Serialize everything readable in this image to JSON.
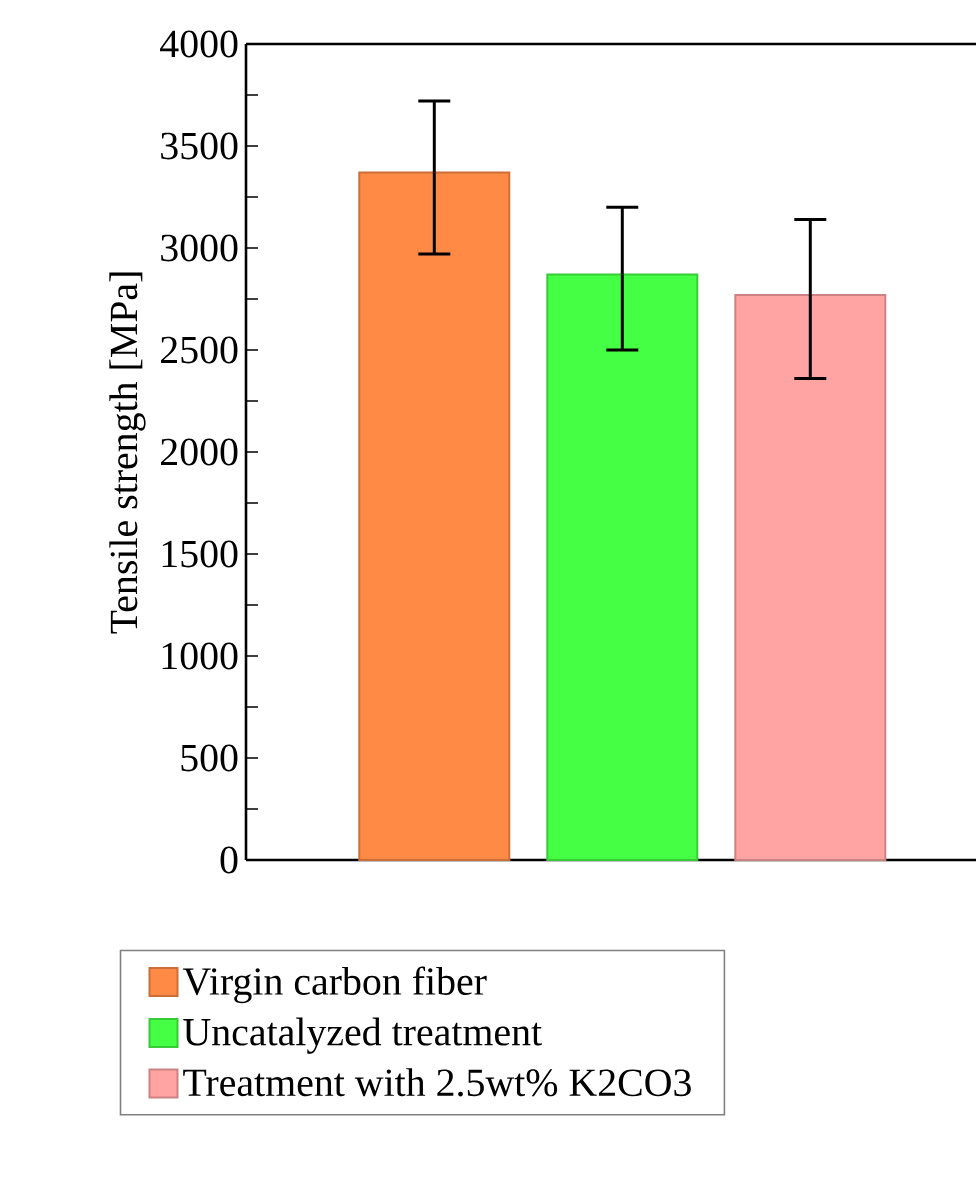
{
  "chart_data": {
    "type": "bar",
    "ylabel": "Tensile strength [MPa]",
    "categories": [
      null
    ],
    "series": [
      {
        "name": "Virgin carbon fiber",
        "color": "#ff8a45",
        "values": [
          3370
        ],
        "errors": [
          [
            2970,
            3720
          ]
        ]
      },
      {
        "name": "Uncatalyzed treatment",
        "color": "#45ff45",
        "values": [
          2870
        ],
        "errors": [
          [
            2500,
            3200
          ]
        ]
      },
      {
        "name": "Treatment with 2.5wt% K2CO3",
        "color": "#ffa3a3",
        "values": [
          2770
        ],
        "errors": [
          [
            2360,
            3140
          ]
        ]
      }
    ],
    "ylim": [
      0,
      4000
    ],
    "yticks": [
      0,
      {
        "value": 250,
        "label": null
      },
      500,
      {
        "value": 750,
        "label": null
      },
      1000,
      {
        "value": 1250,
        "label": null
      },
      1500,
      {
        "value": 1750,
        "label": null
      },
      2000,
      {
        "value": 2250,
        "label": null
      },
      2500,
      {
        "value": 2750,
        "label": null
      },
      3000,
      {
        "value": 3250,
        "label": null
      },
      3500,
      {
        "value": 3750,
        "label": null
      },
      4000
    ],
    "legend": "bottom"
  }
}
